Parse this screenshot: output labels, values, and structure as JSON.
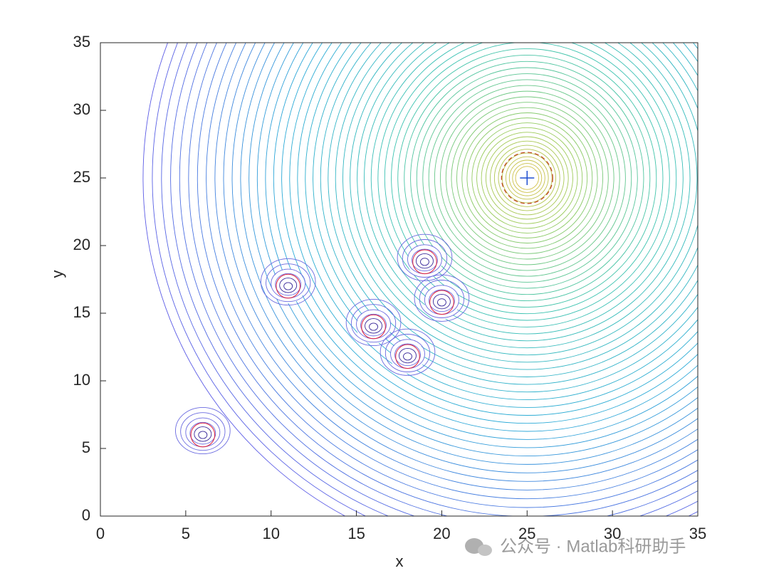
{
  "chart_data": {
    "type": "contour",
    "xlabel": "x",
    "ylabel": "y",
    "xlim": [
      0,
      35
    ],
    "ylim": [
      0,
      35
    ],
    "xticks": [
      0,
      5,
      10,
      15,
      20,
      25,
      30,
      35
    ],
    "yticks": [
      0,
      5,
      10,
      15,
      20,
      25,
      30,
      35
    ],
    "goal": {
      "x": 25,
      "y": 25
    },
    "obstacles": {
      "x": [
        6,
        11,
        16,
        18,
        19,
        20
      ],
      "y": [
        6,
        17,
        14,
        11.8,
        18.8,
        15.8
      ]
    },
    "colors": [
      "#5b5be6",
      "#2aa9d8",
      "#3cc3b0",
      "#9ccc5a",
      "#f2b83a"
    ],
    "watermark": "公众号 · Matlab科研助手"
  }
}
